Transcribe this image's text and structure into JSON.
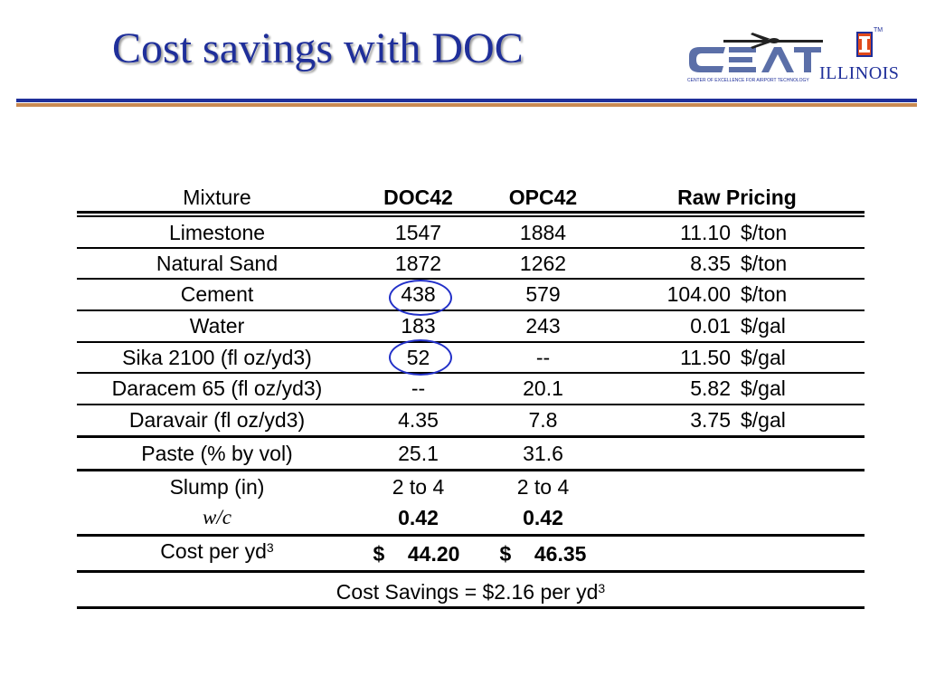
{
  "slide": {
    "title": "Cost savings with DOC",
    "logo": {
      "org": "ILLINOIS",
      "subtitle": "CENTER OF EXCELLENCE FOR AIRPORT TECHNOLOGY",
      "tm": "TM"
    }
  },
  "table": {
    "headers": {
      "mixture": "Mixture",
      "doc": "DOC42",
      "opc": "OPC42",
      "raw": "Raw Pricing"
    },
    "rows": [
      {
        "mixture": "Limestone",
        "doc": "1547",
        "opc": "1884",
        "price": "11.10",
        "unit": "$/ton"
      },
      {
        "mixture": "Natural Sand",
        "doc": "1872",
        "opc": "1262",
        "price": "8.35",
        "unit": "$/ton"
      },
      {
        "mixture": "Cement",
        "doc": "438",
        "opc": "579",
        "price": "104.00",
        "unit": "$/ton"
      },
      {
        "mixture": "Water",
        "doc": "183",
        "opc": "243",
        "price": "0.01",
        "unit": "$/gal"
      },
      {
        "mixture": "Sika 2100 (fl oz/yd3)",
        "doc": "52",
        "opc": "--",
        "price": "11.50",
        "unit": "$/gal"
      },
      {
        "mixture": "Daracem 65 (fl oz/yd3)",
        "doc": "--",
        "opc": "20.1",
        "price": "5.82",
        "unit": "$/gal"
      },
      {
        "mixture": "Daravair (fl oz/yd3)",
        "doc": "4.35",
        "opc": "7.8",
        "price": "3.75",
        "unit": "$/gal"
      }
    ],
    "paste": {
      "label": "Paste (% by vol)",
      "doc": "25.1",
      "opc": "31.6"
    },
    "slump": {
      "label": "Slump (in)",
      "doc": "2 to 4",
      "opc": "2 to 4"
    },
    "wc": {
      "label": "w/c",
      "doc": "0.42",
      "opc": "0.42"
    },
    "cost": {
      "label": "Cost per yd",
      "sup": "3",
      "doc": "$    44.20",
      "opc": "$    46.35"
    },
    "savings": {
      "label": "Cost Savings = $2.16 per yd",
      "sup": "3"
    }
  }
}
